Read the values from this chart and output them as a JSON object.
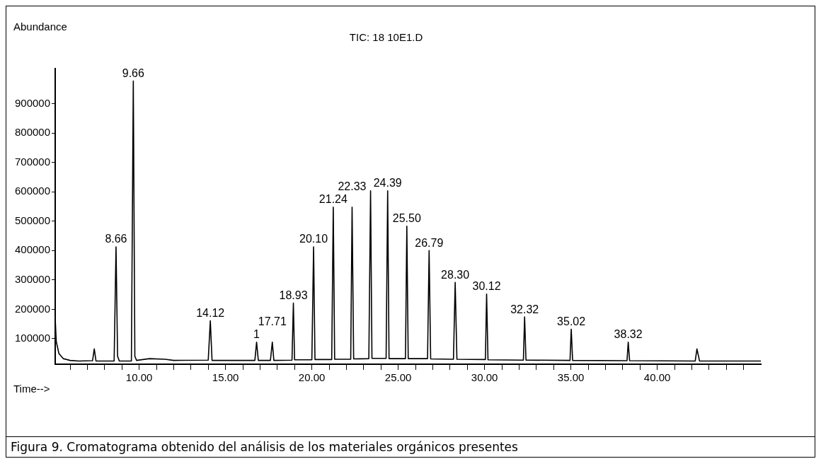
{
  "chart_data": {
    "type": "line",
    "title": "TIC: 18 10E1.D",
    "xlabel": "Time-->",
    "ylabel": "Abundance",
    "x": [
      5.14,
      5.2,
      5.35,
      5.6,
      6.0,
      6.5,
      7.3,
      7.4,
      7.5,
      8.55,
      8.66,
      8.75,
      8.85,
      9.55,
      9.66,
      9.75,
      9.85,
      10.6,
      11.5,
      12.0,
      14.0,
      14.12,
      14.22,
      16.7,
      16.8,
      16.9,
      17.6,
      17.71,
      17.8,
      18.85,
      18.93,
      19.0,
      20.0,
      20.1,
      20.18,
      21.15,
      21.24,
      21.32,
      22.25,
      22.33,
      22.42,
      23.3,
      23.4,
      23.48,
      24.3,
      24.39,
      24.47,
      25.42,
      25.5,
      25.58,
      26.7,
      26.79,
      26.88,
      28.2,
      28.3,
      28.4,
      30.05,
      30.12,
      30.2,
      32.25,
      32.32,
      32.4,
      34.95,
      35.02,
      35.1,
      38.25,
      38.32,
      38.4,
      42.2,
      42.3,
      42.45,
      46.0
    ],
    "values": [
      165000,
      90000,
      50000,
      32000,
      26000,
      24000,
      25000,
      65000,
      24000,
      24000,
      413000,
      40000,
      24000,
      24000,
      978000,
      40000,
      26000,
      32000,
      30000,
      26000,
      27000,
      161000,
      26000,
      26000,
      88000,
      26000,
      26000,
      88000,
      26000,
      27000,
      221000,
      28000,
      28000,
      413000,
      29000,
      29000,
      548000,
      30000,
      30000,
      548000,
      31000,
      32000,
      604000,
      33000,
      33000,
      604000,
      32000,
      32000,
      483000,
      32000,
      32000,
      400000,
      31000,
      30000,
      292000,
      30000,
      29000,
      252000,
      28000,
      27000,
      174000,
      27000,
      26000,
      132000,
      26000,
      25000,
      88000,
      25000,
      24000,
      65000,
      24000,
      24000
    ],
    "color": "#000000",
    "xlim": [
      5.14,
      46.0
    ],
    "xticks": [
      {
        "value": 6,
        "label": null
      },
      {
        "value": 7,
        "label": null
      },
      {
        "value": 8,
        "label": null
      },
      {
        "value": 9,
        "label": null
      },
      {
        "value": 10,
        "label": "10.00"
      },
      {
        "value": 11,
        "label": null
      },
      {
        "value": 12,
        "label": null
      },
      {
        "value": 13,
        "label": null
      },
      {
        "value": 14,
        "label": null
      },
      {
        "value": 15,
        "label": "15.00"
      },
      {
        "value": 16,
        "label": null
      },
      {
        "value": 17,
        "label": null
      },
      {
        "value": 18,
        "label": null
      },
      {
        "value": 19,
        "label": null
      },
      {
        "value": 20,
        "label": "20.00"
      },
      {
        "value": 21,
        "label": null
      },
      {
        "value": 22,
        "label": null
      },
      {
        "value": 23,
        "label": null
      },
      {
        "value": 24,
        "label": null
      },
      {
        "value": 25,
        "label": "25.00"
      },
      {
        "value": 26,
        "label": null
      },
      {
        "value": 27,
        "label": null
      },
      {
        "value": 28,
        "label": null
      },
      {
        "value": 29,
        "label": null
      },
      {
        "value": 30,
        "label": "30.00"
      },
      {
        "value": 31,
        "label": null
      },
      {
        "value": 32,
        "label": null
      },
      {
        "value": 33,
        "label": null
      },
      {
        "value": 34,
        "label": null
      },
      {
        "value": 35,
        "label": "35.00"
      },
      {
        "value": 36,
        "label": null
      },
      {
        "value": 37,
        "label": null
      },
      {
        "value": 38,
        "label": null
      },
      {
        "value": 39,
        "label": null
      },
      {
        "value": 40,
        "label": "40.00"
      },
      {
        "value": 41,
        "label": null
      },
      {
        "value": 42,
        "label": null
      },
      {
        "value": 43,
        "label": null
      },
      {
        "value": 44,
        "label": null
      },
      {
        "value": 45,
        "label": null
      }
    ],
    "ylim": [
      13000,
      1020000
    ],
    "yticks": [
      100000,
      200000,
      300000,
      400000,
      500000,
      600000,
      700000,
      800000,
      900000
    ],
    "grid": false,
    "legend": false,
    "marker": "none",
    "line_style": "solid",
    "annotations": [
      {
        "text": "9.66",
        "x": 9.66,
        "y": 978000
      },
      {
        "text": "8.66",
        "x": 8.66,
        "y": 413000
      },
      {
        "text": "14.12",
        "x": 14.12,
        "y": 161000
      },
      {
        "text": "1",
        "x": 16.8,
        "y": 88000
      },
      {
        "text": "17.71",
        "x": 17.71,
        "y": 88000
      },
      {
        "text": "18.93",
        "x": 18.93,
        "y": 221000
      },
      {
        "text": "20.10",
        "x": 20.1,
        "y": 413000
      },
      {
        "text": "21.24",
        "x": 21.24,
        "y": 548000
      },
      {
        "text": "22.33",
        "x": 22.33,
        "y": 548000
      },
      {
        "text": "24.39",
        "x": 24.39,
        "y": 604000
      },
      {
        "text": "25.50",
        "x": 25.5,
        "y": 483000
      },
      {
        "text": "26.79",
        "x": 26.79,
        "y": 400000
      },
      {
        "text": "28.30",
        "x": 28.3,
        "y": 292000
      },
      {
        "text": "30.12",
        "x": 30.12,
        "y": 252000
      },
      {
        "text": "32.32",
        "x": 32.32,
        "y": 174000
      },
      {
        "text": "35.02",
        "x": 35.02,
        "y": 132000
      },
      {
        "text": "38.32",
        "x": 38.32,
        "y": 88000
      },
      "Figura 9.  Cromatograma obtenido del análisis de los materiales orgánicos presentes"
    ]
  }
}
